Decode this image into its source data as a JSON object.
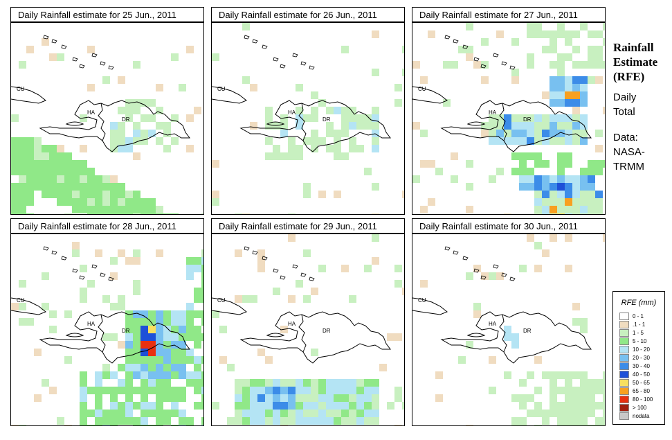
{
  "panels": [
    {
      "title": "Daily Rainfall estimate for  25 Jun., 2011",
      "day": 25
    },
    {
      "title": "Daily Rainfall estimate for  26 Jun., 2011",
      "day": 26
    },
    {
      "title": "Daily Rainfall estimate for  27 Jun., 2011",
      "day": 27
    },
    {
      "title": "Daily Rainfall estimate for  28 Jun., 2011",
      "day": 28
    },
    {
      "title": "Daily Rainfall estimate for  29 Jun., 2011",
      "day": 29
    },
    {
      "title": "Daily Rainfall estimate for  30 Jun., 2011",
      "day": 30
    }
  ],
  "map_labels": {
    "cuba": "CU",
    "haiti": "HA",
    "dominican_republic": "DR"
  },
  "sidebar": {
    "title_line1": "Rainfall",
    "title_line2": "Estimate",
    "title_line3": "(RFE)",
    "period_line1": "Daily",
    "period_line2": "Total",
    "source_line1": "Data:",
    "source_line2": "NASA-",
    "source_line3": "TRMM"
  },
  "legend": {
    "title": "RFE (mm)",
    "items": [
      {
        "label": "0 - 1",
        "color": "#ffffff"
      },
      {
        "label": ".1 - 1",
        "color": "#f0dcc0"
      },
      {
        "label": "1 - 5",
        "color": "#c8f0c0"
      },
      {
        "label": "5 - 10",
        "color": "#90e888"
      },
      {
        "label": "10 - 20",
        "color": "#b4e4f4"
      },
      {
        "label": "20 - 30",
        "color": "#78c0f0"
      },
      {
        "label": "30 - 40",
        "color": "#3c8ce8"
      },
      {
        "label": "40 - 50",
        "color": "#1e50d8"
      },
      {
        "label": "50 - 65",
        "color": "#f8e060"
      },
      {
        "label": "65 - 80",
        "color": "#f8a020"
      },
      {
        "label": "80 - 100",
        "color": "#e83010"
      },
      {
        "label": "> 100",
        "color": "#a02010"
      },
      {
        "label": "nodata",
        "color": "#c8c8c8"
      }
    ]
  }
}
